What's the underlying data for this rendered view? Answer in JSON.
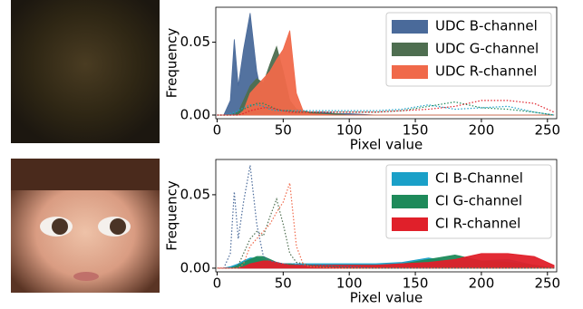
{
  "chart_data": [
    {
      "type": "area",
      "xlabel": "Pixel value",
      "ylabel": "Frequency",
      "xlim": [
        -1,
        257
      ],
      "ylim": [
        -0.0025,
        0.074
      ],
      "xticks": [
        0,
        50,
        100,
        150,
        200,
        250
      ],
      "yticks": [
        {
          "value": 0,
          "label": "0.00"
        },
        {
          "value": 0.05,
          "label": "0.05"
        }
      ],
      "legend": "upper right",
      "x": [
        0,
        5,
        10,
        13,
        16,
        20,
        25,
        30,
        35,
        40,
        45,
        50,
        55,
        60,
        65,
        70,
        80,
        90,
        100,
        120,
        140,
        160,
        180,
        200,
        220,
        240,
        255
      ],
      "series": [
        {
          "name": "UDC B-channel",
          "color": "#4a6a9a",
          "values": [
            0,
            0,
            0.01,
            0.052,
            0.02,
            0.045,
            0.07,
            0.03,
            0.008,
            0.005,
            0.004,
            0.003,
            0.003,
            0.003,
            0.002,
            0.002,
            0.002,
            0.001,
            0.001,
            0,
            0,
            0,
            0,
            0,
            0,
            0,
            0
          ]
        },
        {
          "name": "UDC G-channel",
          "color": "#4e6e50",
          "values": [
            0,
            0,
            0,
            0,
            0.002,
            0.01,
            0.02,
            0.025,
            0.022,
            0.035,
            0.047,
            0.03,
            0.01,
            0.004,
            0.003,
            0.002,
            0.001,
            0.001,
            0,
            0,
            0,
            0,
            0,
            0,
            0,
            0,
            0
          ]
        },
        {
          "name": "UDC R-channel",
          "color": "#f0694a",
          "values": [
            0,
            0,
            0,
            0,
            0,
            0.003,
            0.015,
            0.02,
            0.025,
            0.03,
            0.038,
            0.045,
            0.058,
            0.015,
            0.003,
            0.001,
            0.0005,
            0,
            0,
            0,
            0,
            0,
            0,
            0,
            0,
            0,
            0
          ]
        }
      ],
      "dotted": [
        {
          "color": "#1aa0c8",
          "values": [
            0,
            0,
            0.001,
            0.002,
            0.003,
            0.005,
            0.007,
            0.007,
            0.006,
            0.004,
            0.003,
            0.003,
            0.003,
            0.003,
            0.003,
            0.003,
            0.003,
            0.003,
            0.003,
            0.003,
            0.004,
            0.007,
            0.004,
            0.005,
            0.006,
            0.002,
            0
          ]
        },
        {
          "color": "#1e8a5a",
          "values": [
            0,
            0,
            0,
            0.001,
            0.002,
            0.004,
            0.006,
            0.008,
            0.008,
            0.006,
            0.004,
            0.003,
            0.003,
            0.002,
            0.002,
            0.002,
            0.002,
            0.002,
            0.002,
            0.002,
            0.003,
            0.006,
            0.009,
            0.005,
            0.004,
            0.002,
            0
          ]
        },
        {
          "color": "#e0202a",
          "values": [
            0,
            0,
            0,
            0,
            0,
            0.001,
            0.003,
            0.004,
            0.005,
            0.005,
            0.004,
            0.003,
            0.002,
            0.002,
            0.002,
            0.002,
            0.002,
            0.002,
            0.002,
            0.002,
            0.003,
            0.004,
            0.006,
            0.01,
            0.01,
            0.008,
            0.002
          ]
        }
      ]
    },
    {
      "type": "area",
      "xlabel": "Pixel value",
      "ylabel": "Frequency",
      "xlim": [
        -1,
        257
      ],
      "ylim": [
        -0.0025,
        0.074
      ],
      "xticks": [
        0,
        50,
        100,
        150,
        200,
        250
      ],
      "yticks": [
        {
          "value": 0,
          "label": "0.00"
        },
        {
          "value": 0.05,
          "label": "0.05"
        }
      ],
      "legend": "upper right",
      "x": [
        0,
        5,
        10,
        13,
        16,
        20,
        25,
        30,
        35,
        40,
        45,
        50,
        55,
        60,
        65,
        70,
        80,
        90,
        100,
        120,
        140,
        160,
        180,
        200,
        220,
        240,
        255
      ],
      "series": [
        {
          "name": "CI B-Channel",
          "color": "#1aa0c8",
          "values": [
            0,
            0,
            0.001,
            0.002,
            0.003,
            0.005,
            0.007,
            0.007,
            0.006,
            0.004,
            0.003,
            0.003,
            0.003,
            0.003,
            0.003,
            0.003,
            0.003,
            0.003,
            0.003,
            0.003,
            0.004,
            0.007,
            0.004,
            0.005,
            0.006,
            0.002,
            0
          ]
        },
        {
          "name": "CI G-channel",
          "color": "#1e8a5a",
          "values": [
            0,
            0,
            0,
            0.001,
            0.002,
            0.004,
            0.006,
            0.008,
            0.008,
            0.006,
            0.004,
            0.003,
            0.003,
            0.002,
            0.002,
            0.002,
            0.002,
            0.002,
            0.002,
            0.002,
            0.003,
            0.006,
            0.009,
            0.005,
            0.004,
            0.002,
            0
          ]
        },
        {
          "name": "CI R-channel",
          "color": "#e0202a",
          "values": [
            0,
            0,
            0,
            0,
            0,
            0.001,
            0.003,
            0.004,
            0.005,
            0.005,
            0.004,
            0.003,
            0.002,
            0.002,
            0.002,
            0.002,
            0.002,
            0.002,
            0.002,
            0.002,
            0.003,
            0.004,
            0.006,
            0.01,
            0.01,
            0.008,
            0.002
          ]
        }
      ],
      "dotted": [
        {
          "color": "#4a6a9a",
          "values": [
            0,
            0,
            0.01,
            0.052,
            0.02,
            0.045,
            0.07,
            0.03,
            0.008,
            0.005,
            0.004,
            0.003,
            0.003,
            0.003,
            0.002,
            0.002,
            0.002,
            0.001,
            0.001,
            0,
            0,
            0,
            0,
            0,
            0,
            0,
            0
          ]
        },
        {
          "color": "#4e6e50",
          "values": [
            0,
            0,
            0,
            0,
            0.002,
            0.01,
            0.02,
            0.025,
            0.022,
            0.035,
            0.047,
            0.03,
            0.01,
            0.004,
            0.003,
            0.002,
            0.001,
            0.001,
            0,
            0,
            0,
            0,
            0,
            0,
            0,
            0,
            0
          ]
        },
        {
          "color": "#f0694a",
          "values": [
            0,
            0,
            0,
            0,
            0,
            0.003,
            0.015,
            0.02,
            0.025,
            0.03,
            0.038,
            0.045,
            0.058,
            0.015,
            0.003,
            0.001,
            0.0005,
            0,
            0,
            0,
            0,
            0,
            0,
            0,
            0,
            0,
            0
          ]
        }
      ]
    }
  ]
}
